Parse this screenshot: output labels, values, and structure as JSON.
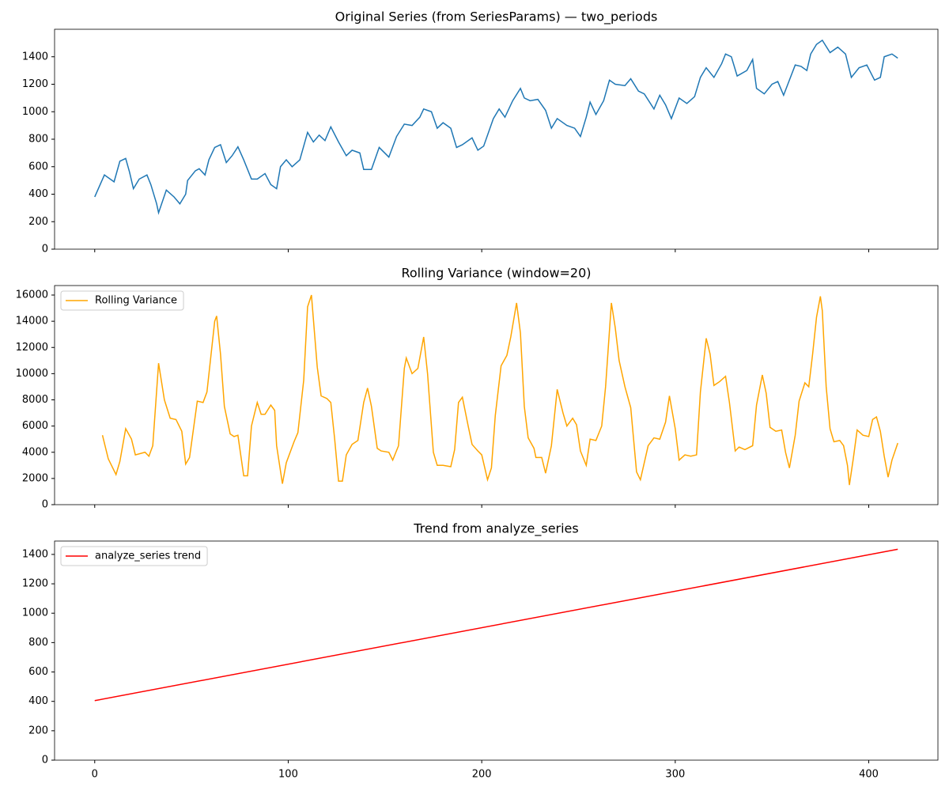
{
  "chart_data": [
    {
      "type": "line",
      "title": "Original Series (from SeriesParams) — two_periods",
      "x": [
        0,
        5,
        10,
        13,
        16,
        18,
        20,
        23,
        27,
        29,
        32,
        33,
        37,
        41,
        44,
        47,
        48,
        52,
        54,
        57,
        59,
        62,
        65,
        68,
        71,
        74,
        77,
        81,
        84,
        88,
        91,
        94,
        96,
        99,
        102,
        106,
        110,
        113,
        116,
        119,
        122,
        126,
        130,
        133,
        137,
        139,
        143,
        147,
        152,
        156,
        160,
        164,
        168,
        170,
        174,
        177,
        180,
        184,
        187,
        190,
        195,
        198,
        201,
        206,
        209,
        212,
        216,
        220,
        222,
        225,
        229,
        233,
        236,
        239,
        244,
        248,
        251,
        254,
        256,
        259,
        263,
        266,
        269,
        274,
        277,
        281,
        284,
        289,
        292,
        295,
        298,
        302,
        306,
        310,
        313,
        316,
        320,
        324,
        326,
        329,
        332,
        337,
        340,
        342,
        346,
        350,
        353,
        356,
        359,
        362,
        365,
        368,
        370,
        373,
        376,
        380,
        384,
        388,
        391,
        395,
        399,
        403,
        406,
        408,
        412,
        415
      ],
      "series": [
        {
          "color": "#1f77b4",
          "values": [
            380,
            540,
            490,
            640,
            660,
            560,
            440,
            510,
            540,
            470,
            330,
            265,
            430,
            380,
            330,
            400,
            500,
            570,
            585,
            540,
            650,
            740,
            760,
            630,
            680,
            745,
            650,
            510,
            510,
            550,
            470,
            440,
            600,
            650,
            600,
            650,
            850,
            780,
            830,
            790,
            890,
            780,
            680,
            720,
            700,
            580,
            580,
            740,
            670,
            820,
            910,
            900,
            960,
            1020,
            1000,
            880,
            920,
            880,
            740,
            760,
            810,
            720,
            750,
            950,
            1020,
            960,
            1080,
            1170,
            1100,
            1080,
            1090,
            1010,
            880,
            950,
            900,
            880,
            820,
            960,
            1070,
            980,
            1080,
            1230,
            1200,
            1190,
            1240,
            1150,
            1130,
            1020,
            1120,
            1050,
            950,
            1100,
            1060,
            1110,
            1250,
            1320,
            1250,
            1350,
            1420,
            1400,
            1260,
            1300,
            1380,
            1170,
            1130,
            1200,
            1220,
            1120,
            1230,
            1340,
            1330,
            1300,
            1420,
            1490,
            1520,
            1430,
            1470,
            1420,
            1250,
            1320,
            1340,
            1230,
            1250,
            1400,
            1420,
            1390
          ]
        }
      ],
      "xlim": [
        -20.75,
        435.75
      ],
      "ylim": [
        0,
        1600
      ],
      "yticks": [
        0,
        200,
        400,
        600,
        800,
        1000,
        1200,
        1400
      ]
    },
    {
      "type": "line",
      "title": "Rolling Variance (window=20)",
      "x": [
        4,
        7,
        11,
        13,
        16,
        19,
        21,
        26,
        28,
        30,
        33,
        36,
        39,
        42,
        45,
        47,
        49,
        53,
        56,
        58,
        62,
        63,
        65,
        67,
        70,
        72,
        74,
        77,
        79,
        81,
        84,
        86,
        88,
        91,
        93,
        94,
        97,
        99,
        103,
        105,
        108,
        110,
        112,
        115,
        117,
        120,
        122,
        124,
        126,
        128,
        130,
        133,
        136,
        139,
        141,
        143,
        146,
        148,
        152,
        154,
        157,
        160,
        161,
        164,
        167,
        170,
        172,
        175,
        177,
        180,
        184,
        186,
        188,
        190,
        193,
        195,
        198,
        200,
        203,
        205,
        207,
        210,
        213,
        215,
        218,
        220,
        222,
        224,
        227,
        228,
        231,
        233,
        236,
        239,
        242,
        244,
        247,
        249,
        251,
        254,
        256,
        259,
        262,
        264,
        267,
        269,
        271,
        274,
        277,
        280,
        282,
        286,
        289,
        292,
        295,
        297,
        300,
        302,
        305,
        308,
        311,
        313,
        316,
        318,
        320,
        323,
        326,
        328,
        331,
        333,
        336,
        340,
        342,
        345,
        347,
        349,
        352,
        355,
        357,
        359,
        362,
        364,
        367,
        369,
        371,
        373,
        375,
        376,
        378,
        380,
        382,
        385,
        387,
        389,
        390,
        392,
        394,
        397,
        400,
        402,
        404,
        406,
        408,
        410,
        412,
        415
      ],
      "series": [
        {
          "name": "Rolling Variance",
          "color": "#ffa500",
          "values": [
            5300,
            3500,
            2300,
            3300,
            5800,
            5000,
            3800,
            4000,
            3700,
            4500,
            10800,
            8000,
            6600,
            6500,
            5600,
            3100,
            3600,
            7900,
            7800,
            8600,
            14000,
            14400,
            11500,
            7500,
            5400,
            5200,
            5300,
            2200,
            2200,
            6000,
            7800,
            6900,
            6900,
            7600,
            7200,
            4500,
            1600,
            3200,
            4800,
            5500,
            9500,
            15100,
            16000,
            10500,
            8300,
            8100,
            7800,
            5000,
            1800,
            1800,
            3800,
            4600,
            4900,
            7800,
            8900,
            7500,
            4300,
            4100,
            4000,
            3400,
            4500,
            10400,
            11200,
            10000,
            10400,
            12800,
            10000,
            4000,
            3000,
            3000,
            2900,
            4200,
            7800,
            8200,
            6000,
            4600,
            4100,
            3800,
            1900,
            2800,
            6800,
            10600,
            11400,
            12800,
            15400,
            13100,
            7500,
            5100,
            4300,
            3600,
            3600,
            2400,
            4500,
            8800,
            7000,
            6000,
            6600,
            6100,
            4100,
            3000,
            5000,
            4900,
            6000,
            9000,
            15400,
            13500,
            11000,
            9000,
            7400,
            2500,
            1900,
            4500,
            5100,
            5000,
            6300,
            8300,
            5800,
            3400,
            3800,
            3700,
            3800,
            8600,
            12700,
            11500,
            9100,
            9400,
            9800,
            7800,
            4100,
            4400,
            4200,
            4500,
            7600,
            9900,
            8500,
            5900,
            5600,
            5700,
            4000,
            2800,
            5300,
            7900,
            9300,
            9000,
            11500,
            14300,
            15900,
            14800,
            9000,
            5800,
            4800,
            4900,
            4500,
            3000,
            1500,
            3500,
            5700,
            5300,
            5200,
            6500,
            6700,
            5600,
            3700,
            2100,
            3400,
            4700
          ]
        }
      ],
      "xlim": [
        -20.75,
        435.75
      ],
      "ylim": [
        0,
        16725
      ],
      "yticks": [
        0,
        2000,
        4000,
        6000,
        8000,
        10000,
        12000,
        14000,
        16000
      ],
      "legend": "upper left"
    },
    {
      "type": "line",
      "title": "Trend from analyze_series",
      "x": [
        0,
        415
      ],
      "series": [
        {
          "name": "analyze_series trend",
          "color": "#ff0000",
          "values": [
            405,
            1435
          ]
        }
      ],
      "xlim": [
        -20.75,
        435.75
      ],
      "xticks": [
        0,
        100,
        200,
        300,
        400
      ],
      "ylim": [
        0,
        1491
      ],
      "yticks": [
        0,
        200,
        400,
        600,
        800,
        1000,
        1200,
        1400
      ],
      "legend": "upper left"
    }
  ]
}
